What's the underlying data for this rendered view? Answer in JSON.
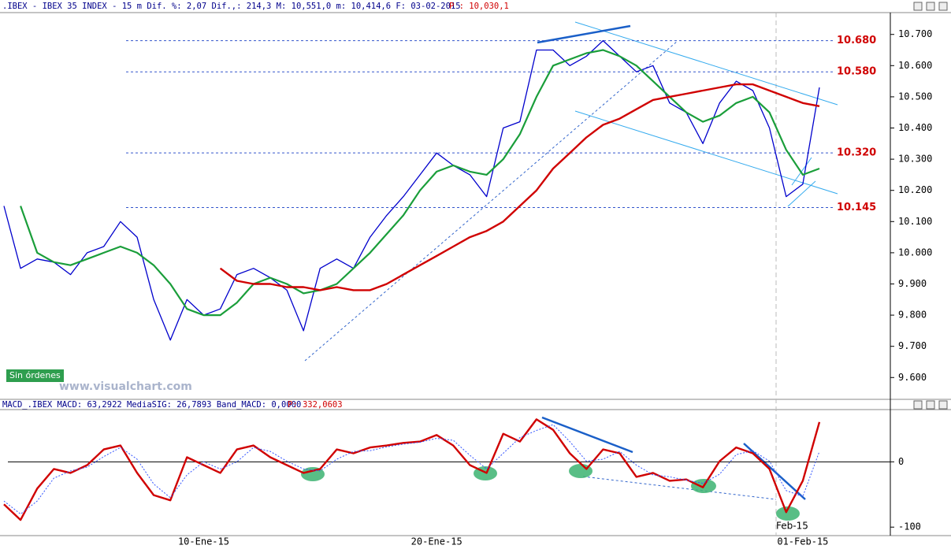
{
  "chart_data": [
    {
      "type": "line",
      "title": ".IBEX - IBEX 35 INDEX -  15 m Dif. %: 2,07 Dif.,: 214,3 M: 10,551,0 m: 10,414,6 F: 03-02-2015",
      "subtitle": "P : 10,030,1",
      "button": "Sin órdenes",
      "watermark": "www.visualchart.com",
      "ylim": [
        9.53,
        10.77
      ],
      "yticks": [
        {
          "value": 9.6,
          "label": "9.600"
        },
        {
          "value": 9.7,
          "label": "9.700"
        },
        {
          "value": 9.8,
          "label": "9.800"
        },
        {
          "value": 9.9,
          "label": "9.900"
        },
        {
          "value": 10.0,
          "label": "10.000"
        },
        {
          "value": 10.1,
          "label": "10.100"
        },
        {
          "value": 10.2,
          "label": "10.200"
        },
        {
          "value": 10.3,
          "label": "10.300"
        },
        {
          "value": 10.4,
          "label": "10.400"
        },
        {
          "value": 10.5,
          "label": "10.500"
        },
        {
          "value": 10.6,
          "label": "10.600"
        },
        {
          "value": 10.7,
          "label": "10.700"
        }
      ],
      "levels": [
        {
          "value": 10.68,
          "label": "10.680"
        },
        {
          "value": 10.58,
          "label": "10.580"
        },
        {
          "value": 10.32,
          "label": "10.320"
        },
        {
          "value": 10.145,
          "label": "10.145"
        }
      ],
      "series": [
        {
          "name": null,
          "color": "#0000cc",
          "width": 1.3,
          "values": [
            10.15,
            9.95,
            9.98,
            9.97,
            9.93,
            10.0,
            10.02,
            10.1,
            10.05,
            9.85,
            9.72,
            9.85,
            9.8,
            9.82,
            9.93,
            9.95,
            9.92,
            9.88,
            9.75,
            9.95,
            9.98,
            9.95,
            10.05,
            10.12,
            10.18,
            10.25,
            10.32,
            10.28,
            10.25,
            10.18,
            10.4,
            10.42,
            10.65,
            10.65,
            10.6,
            10.63,
            10.68,
            10.63,
            10.58,
            10.6,
            10.48,
            10.45,
            10.35,
            10.48,
            10.55,
            10.52,
            10.4,
            10.18,
            10.22,
            10.53
          ]
        },
        {
          "name": null,
          "color": "#1a9e3a",
          "width": 2.2,
          "values": [
            null,
            10.15,
            10.0,
            9.97,
            9.96,
            9.98,
            10.0,
            10.02,
            10.0,
            9.96,
            9.9,
            9.82,
            9.8,
            9.8,
            9.84,
            9.9,
            9.92,
            9.9,
            9.87,
            9.88,
            9.9,
            9.95,
            10.0,
            10.06,
            10.12,
            10.2,
            10.26,
            10.28,
            10.26,
            10.25,
            10.3,
            10.38,
            10.5,
            10.6,
            10.62,
            10.64,
            10.65,
            10.63,
            10.6,
            10.55,
            10.5,
            10.45,
            10.42,
            10.44,
            10.48,
            10.5,
            10.45,
            10.33,
            10.25,
            10.27
          ]
        },
        {
          "name": null,
          "color": "#d00000",
          "width": 2.4,
          "values": [
            null,
            null,
            null,
            null,
            null,
            null,
            null,
            null,
            null,
            null,
            null,
            null,
            null,
            9.95,
            9.91,
            9.9,
            9.9,
            9.89,
            9.89,
            9.88,
            9.89,
            9.88,
            9.88,
            9.9,
            9.93,
            9.96,
            9.99,
            10.02,
            10.05,
            10.07,
            10.1,
            10.15,
            10.2,
            10.27,
            10.32,
            10.37,
            10.41,
            10.43,
            10.46,
            10.49,
            10.5,
            10.51,
            10.52,
            10.53,
            10.54,
            10.54,
            10.52,
            10.5,
            10.48,
            10.47
          ]
        }
      ]
    },
    {
      "type": "line",
      "title": "MACD_.IBEX MACD: 63,2922 MediaSIG: 26,7893 Band_MACD: 0,0000",
      "subtitle": "P: 332,0603",
      "annotation": "Feb-15",
      "ylim": [
        -113,
        80
      ],
      "yticks": [
        0,
        -100
      ],
      "categories": [
        null,
        null,
        null,
        null,
        null,
        null,
        null,
        null,
        null,
        null,
        null,
        null,
        "10-Ene-15",
        null,
        null,
        null,
        null,
        null,
        null,
        null,
        null,
        null,
        null,
        null,
        null,
        null,
        "20-Ene-15",
        null,
        null,
        null,
        null,
        null,
        null,
        null,
        null,
        null,
        null,
        null,
        null,
        null,
        null,
        null,
        null,
        null,
        null,
        null,
        null,
        null,
        "01-Feb-15",
        null
      ],
      "series": [
        {
          "name": null,
          "color": "#d00000",
          "width": 2.4,
          "values": [
            -65,
            -89,
            -41,
            -11,
            -17,
            -5,
            19,
            25,
            -17,
            -51,
            -59,
            7,
            -5,
            -17,
            19,
            25,
            7,
            -5,
            -17,
            -11,
            19,
            13,
            22,
            25,
            29,
            31,
            41,
            25,
            -5,
            -17,
            43,
            31,
            65,
            49,
            13,
            -11,
            19,
            13,
            -23,
            -17,
            -29,
            -27,
            -39,
            1,
            22,
            13,
            -11,
            -77,
            -29,
            61
          ]
        },
        {
          "name": null,
          "color": "#3355ff",
          "width": 1,
          "dash": true,
          "values": [
            -60,
            -80,
            -60,
            -25,
            -14,
            -8,
            8,
            22,
            4,
            -34,
            -55,
            -20,
            0,
            -11,
            0,
            22,
            16,
            1,
            -11,
            -14,
            4,
            16,
            17,
            23,
            27,
            30,
            36,
            33,
            10,
            -11,
            13,
            37,
            48,
            57,
            31,
            1,
            4,
            16,
            -5,
            -20,
            -23,
            -28,
            -33,
            -19,
            11,
            17,
            1,
            -44,
            -53,
            16
          ]
        }
      ]
    }
  ]
}
